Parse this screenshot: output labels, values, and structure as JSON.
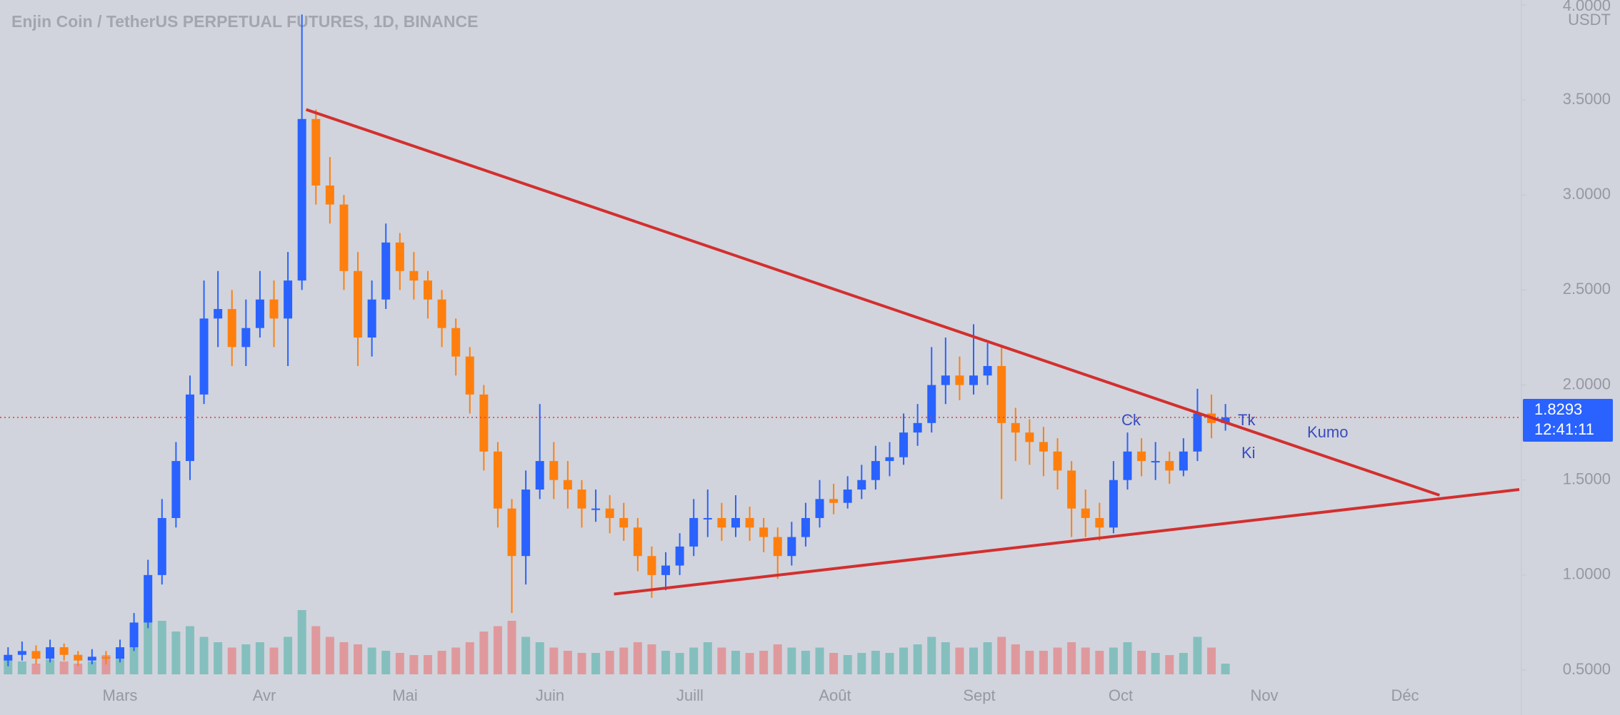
{
  "chart_data": {
    "type": "candlestick",
    "title": "Enjin Coin / TetherUS PERPETUAL FUTURES, 1D, BINANCE",
    "y_unit": "USDT",
    "ylim": [
      0.48,
      4.0
    ],
    "yticks": [
      {
        "value": 4.0,
        "label": "4.0000"
      },
      {
        "value": 3.5,
        "label": "3.5000"
      },
      {
        "value": 3.0,
        "label": "3.0000"
      },
      {
        "value": 2.5,
        "label": "2.5000"
      },
      {
        "value": 2.0,
        "label": "2.0000"
      },
      {
        "value": 1.5,
        "label": "1.5000"
      },
      {
        "value": 1.0,
        "label": "1.0000"
      },
      {
        "value": 0.5,
        "label": "0.5000"
      }
    ],
    "months": [
      "Mars",
      "Avr",
      "Mai",
      "Juin",
      "Juill",
      "Août",
      "Sept",
      "Oct",
      "Nov",
      "Déc"
    ],
    "up_color": "#2962ff",
    "down_color": "#ff7f0e",
    "ohlc": [
      [
        0.55,
        0.62,
        0.52,
        0.58
      ],
      [
        0.58,
        0.65,
        0.55,
        0.6
      ],
      [
        0.6,
        0.63,
        0.53,
        0.56
      ],
      [
        0.56,
        0.66,
        0.54,
        0.62
      ],
      [
        0.62,
        0.64,
        0.55,
        0.58
      ],
      [
        0.58,
        0.6,
        0.52,
        0.55
      ],
      [
        0.55,
        0.61,
        0.53,
        0.57
      ],
      [
        0.57,
        0.6,
        0.53,
        0.56
      ],
      [
        0.56,
        0.66,
        0.54,
        0.62
      ],
      [
        0.62,
        0.8,
        0.6,
        0.75
      ],
      [
        0.75,
        1.08,
        0.72,
        1.0
      ],
      [
        1.0,
        1.4,
        0.95,
        1.3
      ],
      [
        1.3,
        1.7,
        1.25,
        1.6
      ],
      [
        1.6,
        2.05,
        1.5,
        1.95
      ],
      [
        1.95,
        2.55,
        1.9,
        2.35
      ],
      [
        2.35,
        2.6,
        2.2,
        2.4
      ],
      [
        2.4,
        2.5,
        2.1,
        2.2
      ],
      [
        2.2,
        2.45,
        2.1,
        2.3
      ],
      [
        2.3,
        2.6,
        2.25,
        2.45
      ],
      [
        2.45,
        2.55,
        2.2,
        2.35
      ],
      [
        2.35,
        2.7,
        2.1,
        2.55
      ],
      [
        2.55,
        3.95,
        2.5,
        3.4
      ],
      [
        3.4,
        3.45,
        2.95,
        3.05
      ],
      [
        3.05,
        3.2,
        2.85,
        2.95
      ],
      [
        2.95,
        3.0,
        2.5,
        2.6
      ],
      [
        2.6,
        2.7,
        2.1,
        2.25
      ],
      [
        2.25,
        2.55,
        2.15,
        2.45
      ],
      [
        2.45,
        2.85,
        2.4,
        2.75
      ],
      [
        2.75,
        2.8,
        2.5,
        2.6
      ],
      [
        2.6,
        2.7,
        2.45,
        2.55
      ],
      [
        2.55,
        2.6,
        2.35,
        2.45
      ],
      [
        2.45,
        2.5,
        2.2,
        2.3
      ],
      [
        2.3,
        2.35,
        2.05,
        2.15
      ],
      [
        2.15,
        2.2,
        1.85,
        1.95
      ],
      [
        1.95,
        2.0,
        1.55,
        1.65
      ],
      [
        1.65,
        1.7,
        1.25,
        1.35
      ],
      [
        1.35,
        1.4,
        0.8,
        1.1
      ],
      [
        1.1,
        1.55,
        0.95,
        1.45
      ],
      [
        1.45,
        1.9,
        1.4,
        1.6
      ],
      [
        1.6,
        1.7,
        1.4,
        1.5
      ],
      [
        1.5,
        1.6,
        1.35,
        1.45
      ],
      [
        1.45,
        1.5,
        1.25,
        1.35
      ],
      [
        1.35,
        1.45,
        1.28,
        1.35
      ],
      [
        1.35,
        1.42,
        1.22,
        1.3
      ],
      [
        1.3,
        1.38,
        1.18,
        1.25
      ],
      [
        1.25,
        1.3,
        1.02,
        1.1
      ],
      [
        1.1,
        1.15,
        0.88,
        1.0
      ],
      [
        1.0,
        1.12,
        0.92,
        1.05
      ],
      [
        1.05,
        1.22,
        1.0,
        1.15
      ],
      [
        1.15,
        1.4,
        1.1,
        1.3
      ],
      [
        1.3,
        1.45,
        1.2,
        1.3
      ],
      [
        1.3,
        1.38,
        1.18,
        1.25
      ],
      [
        1.25,
        1.42,
        1.2,
        1.3
      ],
      [
        1.3,
        1.36,
        1.18,
        1.25
      ],
      [
        1.25,
        1.3,
        1.12,
        1.2
      ],
      [
        1.2,
        1.25,
        0.98,
        1.1
      ],
      [
        1.1,
        1.28,
        1.05,
        1.2
      ],
      [
        1.2,
        1.38,
        1.15,
        1.3
      ],
      [
        1.3,
        1.5,
        1.25,
        1.4
      ],
      [
        1.4,
        1.48,
        1.32,
        1.38
      ],
      [
        1.38,
        1.52,
        1.35,
        1.45
      ],
      [
        1.45,
        1.58,
        1.4,
        1.5
      ],
      [
        1.5,
        1.68,
        1.45,
        1.6
      ],
      [
        1.6,
        1.7,
        1.52,
        1.62
      ],
      [
        1.62,
        1.85,
        1.58,
        1.75
      ],
      [
        1.75,
        1.9,
        1.68,
        1.8
      ],
      [
        1.8,
        2.2,
        1.75,
        2.0
      ],
      [
        2.0,
        2.25,
        1.9,
        2.05
      ],
      [
        2.05,
        2.15,
        1.92,
        2.0
      ],
      [
        2.0,
        2.32,
        1.95,
        2.05
      ],
      [
        2.05,
        2.22,
        2.0,
        2.1
      ],
      [
        2.1,
        2.2,
        1.4,
        1.8
      ],
      [
        1.8,
        1.88,
        1.6,
        1.75
      ],
      [
        1.75,
        1.82,
        1.58,
        1.7
      ],
      [
        1.7,
        1.78,
        1.52,
        1.65
      ],
      [
        1.65,
        1.72,
        1.45,
        1.55
      ],
      [
        1.55,
        1.6,
        1.2,
        1.35
      ],
      [
        1.35,
        1.45,
        1.2,
        1.3
      ],
      [
        1.3,
        1.38,
        1.18,
        1.25
      ],
      [
        1.25,
        1.6,
        1.22,
        1.5
      ],
      [
        1.5,
        1.75,
        1.45,
        1.65
      ],
      [
        1.65,
        1.72,
        1.52,
        1.6
      ],
      [
        1.6,
        1.7,
        1.5,
        1.6
      ],
      [
        1.6,
        1.65,
        1.48,
        1.55
      ],
      [
        1.55,
        1.72,
        1.52,
        1.65
      ],
      [
        1.65,
        1.98,
        1.6,
        1.85
      ],
      [
        1.85,
        1.95,
        1.72,
        1.8
      ],
      [
        1.8,
        1.9,
        1.76,
        1.83
      ]
    ],
    "volume": [
      15,
      12,
      10,
      14,
      12,
      10,
      12,
      18,
      25,
      45,
      60,
      50,
      40,
      45,
      35,
      30,
      25,
      28,
      30,
      25,
      35,
      60,
      45,
      35,
      30,
      28,
      25,
      22,
      20,
      18,
      18,
      22,
      25,
      30,
      40,
      45,
      50,
      35,
      30,
      25,
      22,
      20,
      20,
      22,
      25,
      30,
      28,
      22,
      20,
      25,
      30,
      25,
      22,
      20,
      22,
      28,
      25,
      22,
      25,
      20,
      18,
      20,
      22,
      20,
      25,
      28,
      35,
      30,
      25,
      25,
      30,
      35,
      28,
      22,
      22,
      25,
      30,
      25,
      22,
      25,
      30,
      22,
      20,
      18,
      20,
      35,
      25,
      10
    ],
    "trendlines": [
      {
        "color": "#d32f2f",
        "points": [
          [
            21.3,
            3.45
          ],
          [
            102.3,
            1.42
          ]
        ]
      },
      {
        "color": "#d32f2f",
        "points": [
          [
            43.3,
            0.9
          ],
          [
            108,
            1.45
          ]
        ]
      }
    ],
    "last_price": 1.8293,
    "countdown": "12:41:11",
    "annotations": [
      "Ck",
      "Tk",
      "Ki",
      "Kumo"
    ]
  }
}
